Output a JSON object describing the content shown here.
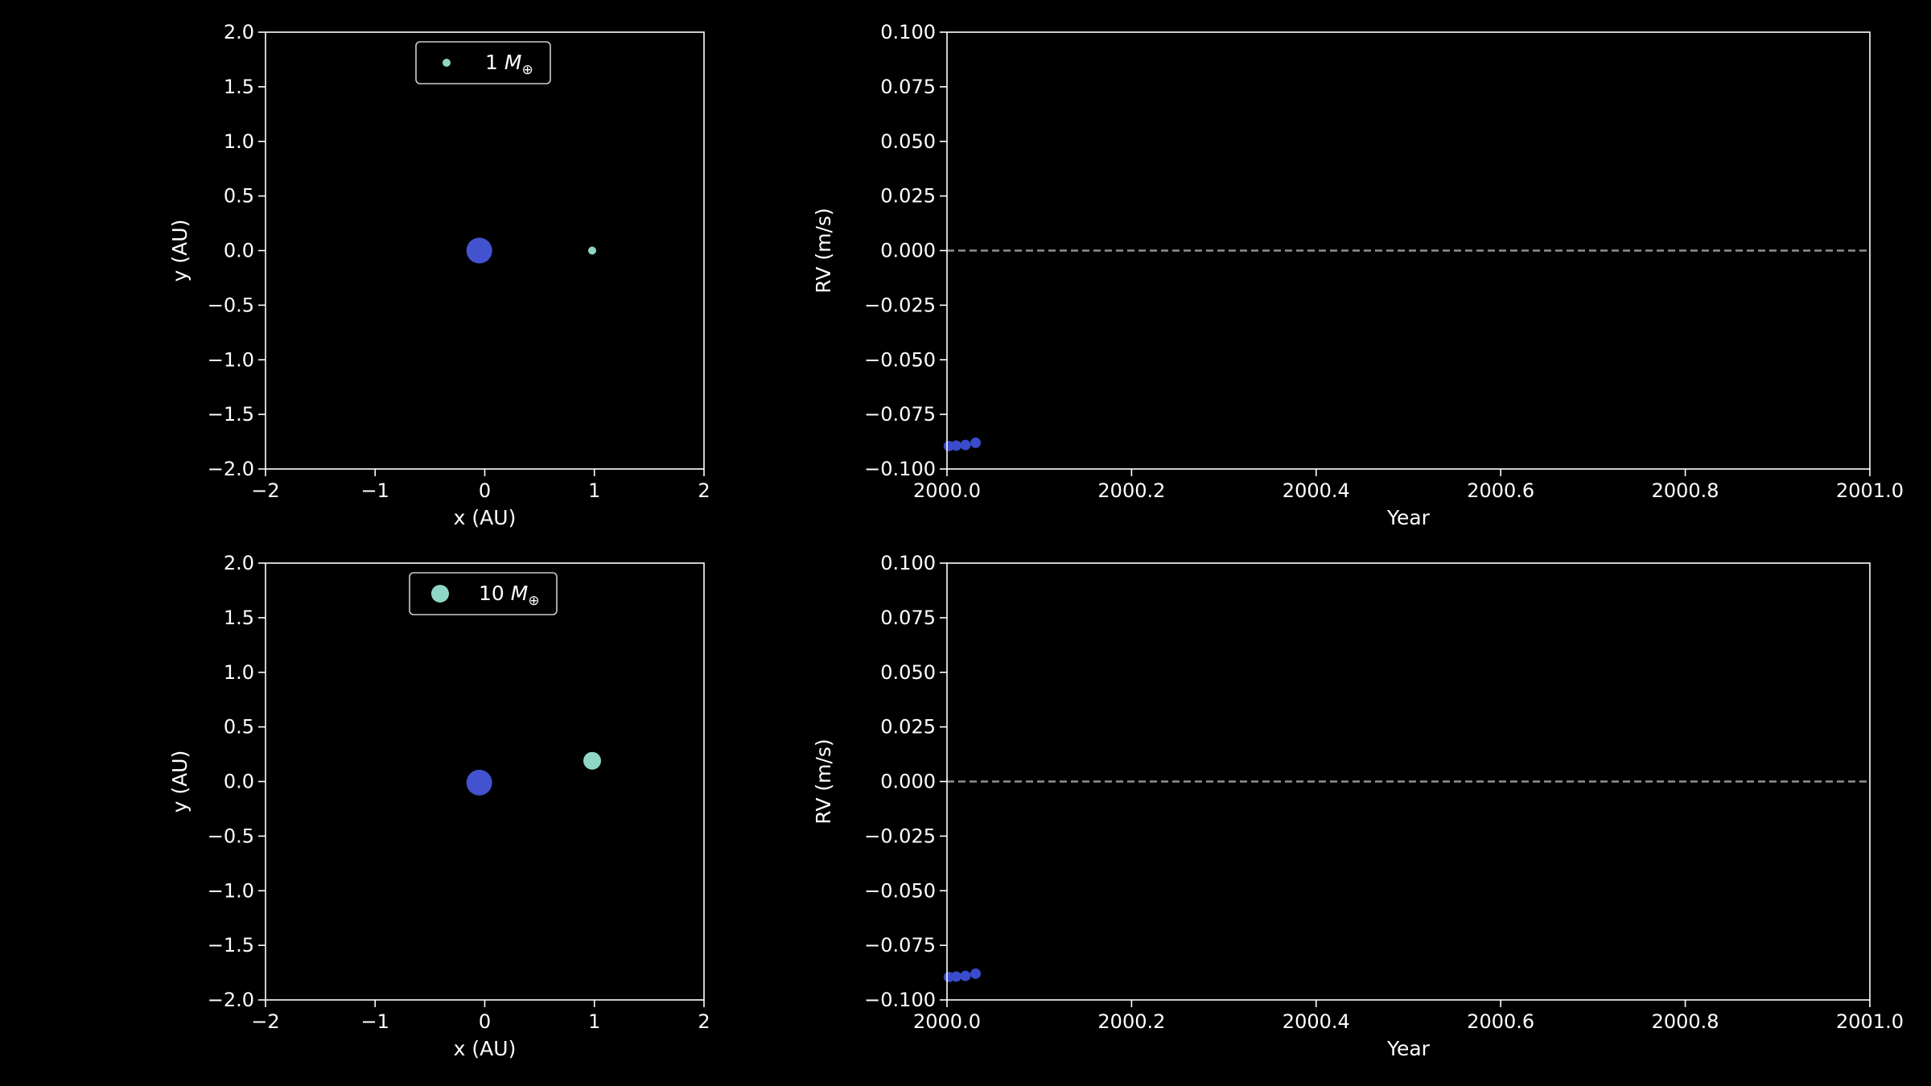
{
  "colors": {
    "background": "#000000",
    "axes": "#ffffff",
    "star": "#4353d0",
    "planet": "#8fd6c6",
    "rv_points": "#3a4ccc",
    "zero_line": "#8f8f8f"
  },
  "chart_data": [
    {
      "type": "scatter",
      "xlabel": "x (AU)",
      "ylabel": "y (AU)",
      "xlim": [
        -2,
        2
      ],
      "ylim": [
        -2,
        2
      ],
      "xticks": [
        -2,
        -1,
        0,
        1,
        2
      ],
      "xtick_labels": [
        "−2",
        "−1",
        "0",
        "1",
        "2"
      ],
      "yticks": [
        2.0,
        1.5,
        1.0,
        0.5,
        0.0,
        -0.5,
        -1.0,
        -1.5,
        -2.0
      ],
      "ytick_labels": [
        "2.0",
        "1.5",
        "1.0",
        "0.5",
        "0.0",
        "−0.5",
        "−1.0",
        "−1.5",
        "−2.0"
      ],
      "legend": {
        "placement": "upper-center",
        "number": "1",
        "symbol": "M",
        "subscript": "⊕"
      },
      "points": [
        {
          "role": "star",
          "x": -0.05,
          "y": 0.0,
          "size": "large"
        },
        {
          "role": "planet",
          "x": 0.98,
          "y": 0.0,
          "size": "small"
        }
      ]
    },
    {
      "type": "scatter",
      "xlabel": "Year",
      "ylabel": "RV (m/s)",
      "xlim": [
        2000.0,
        2001.0
      ],
      "ylim": [
        -0.1,
        0.1
      ],
      "xticks": [
        2000.0,
        2000.2,
        2000.4,
        2000.6,
        2000.8,
        2001.0
      ],
      "xtick_labels": [
        "2000.0",
        "2000.2",
        "2000.4",
        "2000.6",
        "2000.8",
        "2001.0"
      ],
      "yticks": [
        0.1,
        0.075,
        0.05,
        0.025,
        0.0,
        -0.025,
        -0.05,
        -0.075,
        -0.1
      ],
      "ytick_labels": [
        "0.100",
        "0.075",
        "0.050",
        "0.025",
        "0.000",
        "−0.025",
        "−0.050",
        "−0.075",
        "−0.100"
      ],
      "zero_line": true,
      "points": [
        {
          "x": 2000.002,
          "y": -0.0895
        },
        {
          "x": 2000.01,
          "y": -0.0893
        },
        {
          "x": 2000.02,
          "y": -0.089
        },
        {
          "x": 2000.031,
          "y": -0.088
        }
      ]
    },
    {
      "type": "scatter",
      "xlabel": "x (AU)",
      "ylabel": "y (AU)",
      "xlim": [
        -2,
        2
      ],
      "ylim": [
        -2,
        2
      ],
      "xticks": [
        -2,
        -1,
        0,
        1,
        2
      ],
      "xtick_labels": [
        "−2",
        "−1",
        "0",
        "1",
        "2"
      ],
      "yticks": [
        2.0,
        1.5,
        1.0,
        0.5,
        0.0,
        -0.5,
        -1.0,
        -1.5,
        -2.0
      ],
      "ytick_labels": [
        "2.0",
        "1.5",
        "1.0",
        "0.5",
        "0.0",
        "−0.5",
        "−1.0",
        "−1.5",
        "−2.0"
      ],
      "legend": {
        "placement": "upper-center",
        "number": "10",
        "symbol": "M",
        "subscript": "⊕"
      },
      "points": [
        {
          "role": "star",
          "x": -0.05,
          "y": -0.01,
          "size": "large"
        },
        {
          "role": "planet",
          "x": 0.98,
          "y": 0.19,
          "size": "medium"
        }
      ]
    },
    {
      "type": "scatter",
      "xlabel": "Year",
      "ylabel": "RV (m/s)",
      "xlim": [
        2000.0,
        2001.0
      ],
      "ylim": [
        -0.1,
        0.1
      ],
      "xticks": [
        2000.0,
        2000.2,
        2000.4,
        2000.6,
        2000.8,
        2001.0
      ],
      "xtick_labels": [
        "2000.0",
        "2000.2",
        "2000.4",
        "2000.6",
        "2000.8",
        "2001.0"
      ],
      "yticks": [
        0.1,
        0.075,
        0.05,
        0.025,
        0.0,
        -0.025,
        -0.05,
        -0.075,
        -0.1
      ],
      "ytick_labels": [
        "0.100",
        "0.075",
        "0.050",
        "0.025",
        "0.000",
        "−0.025",
        "−0.050",
        "−0.075",
        "−0.100"
      ],
      "zero_line": true,
      "points": [
        {
          "x": 2000.002,
          "y": -0.0895
        },
        {
          "x": 2000.01,
          "y": -0.0893
        },
        {
          "x": 2000.02,
          "y": -0.089
        },
        {
          "x": 2000.031,
          "y": -0.088
        }
      ]
    }
  ]
}
